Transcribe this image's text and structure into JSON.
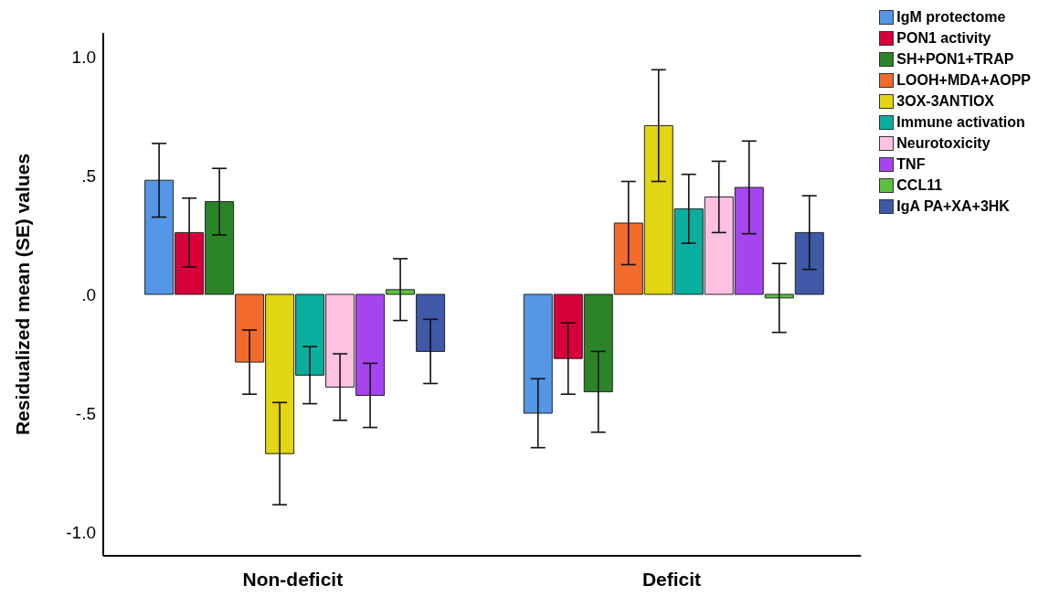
{
  "chart_data": {
    "type": "bar",
    "ylabel": "Residualized mean (SE) values",
    "categories": [
      "Non-deficit",
      "Deficit"
    ],
    "ylim": [
      -1.1,
      1.1
    ],
    "yticks": [
      {
        "value": 1,
        "label": "1.0"
      },
      {
        "value": 0.5,
        "label": ".5"
      },
      {
        "value": 0,
        "label": ".0"
      },
      {
        "value": -0.5,
        "label": "-.5"
      },
      {
        "value": -1,
        "label": "-1.0"
      }
    ],
    "grid": false,
    "legend": "top right",
    "series": [
      {
        "name": "IgM protectome",
        "color": "#5596e6",
        "values": [
          0.48,
          -0.5
        ],
        "errors": [
          0.155,
          0.145
        ]
      },
      {
        "name": "PON1 activity",
        "color": "#d8003a",
        "values": [
          0.26,
          -0.27
        ],
        "errors": [
          0.145,
          0.15
        ]
      },
      {
        "name": "SH+PON1+TRAP",
        "color": "#2b8528",
        "values": [
          0.39,
          -0.41
        ],
        "errors": [
          0.14,
          0.17
        ]
      },
      {
        "name": "LOOH+MDA+AOPP",
        "color": "#f26b2c",
        "values": [
          -0.285,
          0.3
        ],
        "errors": [
          0.135,
          0.175
        ]
      },
      {
        "name": "3OX-3ANTIOX",
        "color": "#e2d511",
        "values": [
          -0.67,
          0.71
        ],
        "errors": [
          0.215,
          0.235
        ]
      },
      {
        "name": "Immune activation",
        "color": "#0aae9e",
        "values": [
          -0.34,
          0.36
        ],
        "errors": [
          0.12,
          0.145
        ]
      },
      {
        "name": "Neurotoxicity",
        "color": "#fec1e2",
        "values": [
          -0.39,
          0.41
        ],
        "errors": [
          0.14,
          0.15
        ]
      },
      {
        "name": "TNF",
        "color": "#a645ef",
        "values": [
          -0.425,
          0.45
        ],
        "errors": [
          0.135,
          0.195
        ]
      },
      {
        "name": "CCL11",
        "color": "#5ac13f",
        "values": [
          0.02,
          -0.015
        ],
        "errors": [
          0.13,
          0.145
        ]
      },
      {
        "name": "IgA PA+XA+3HK",
        "color": "#3f58a8",
        "values": [
          -0.24,
          0.26
        ],
        "errors": [
          0.135,
          0.155
        ]
      }
    ]
  }
}
